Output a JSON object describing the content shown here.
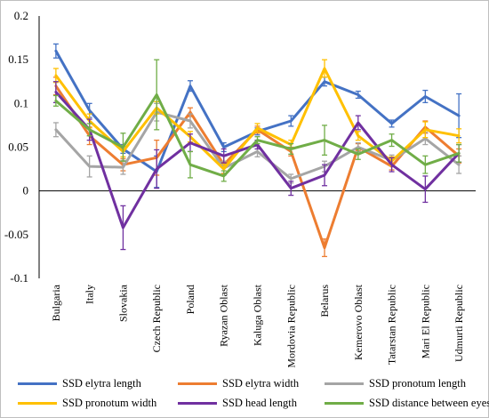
{
  "chart_data": {
    "type": "line",
    "title": "",
    "xlabel": "",
    "ylabel": "",
    "ylim": [
      -0.1,
      0.2
    ],
    "yticks": [
      "0.2",
      "0.15",
      "0.1",
      "0.05",
      "0",
      "-0.05",
      "-0.1"
    ],
    "ytick_values": [
      0.2,
      0.15,
      0.1,
      0.05,
      0,
      -0.05,
      -0.1
    ],
    "grid": false,
    "legend_position": "bottom",
    "categories": [
      "Bulgaria",
      "Italy",
      "Slovakia",
      "Czech Republic",
      "Poland",
      "Ryazan Oblast",
      "Kaluga Oblast",
      "Mordovia Republic",
      "Belarus",
      "Kemerovo Oblast",
      "Tatarstan Republic",
      "Mari El Republic",
      "Udmurti Republic"
    ],
    "series": [
      {
        "name": "SSD elytra length",
        "color": "#4472c4",
        "values": [
          0.16,
          0.092,
          0.048,
          0.022,
          0.12,
          0.05,
          0.068,
          0.08,
          0.125,
          0.11,
          0.077,
          0.108,
          0.086
        ],
        "errors": [
          0.008,
          0.008,
          0.005,
          0.018,
          0.006,
          0.005,
          0.004,
          0.006,
          0.005,
          0.004,
          0.004,
          0.007,
          0.025
        ]
      },
      {
        "name": "SSD elytra width",
        "color": "#ed7d31",
        "values": [
          0.12,
          0.063,
          0.03,
          0.038,
          0.09,
          0.03,
          0.07,
          0.045,
          -0.065,
          0.05,
          0.028,
          0.073,
          0.04
        ],
        "errors": [
          0.01,
          0.01,
          0.007,
          0.02,
          0.005,
          0.01,
          0.004,
          0.005,
          0.01,
          0.004,
          0.004,
          0.007,
          0.008
        ]
      },
      {
        "name": "SSD pronotum length",
        "color": "#a5a5a5",
        "values": [
          0.07,
          0.028,
          0.027,
          0.09,
          0.08,
          0.026,
          0.045,
          0.014,
          0.028,
          0.05,
          0.035,
          0.06,
          0.03
        ],
        "errors": [
          0.008,
          0.012,
          0.008,
          0.01,
          0.008,
          0.008,
          0.006,
          0.005,
          0.006,
          0.005,
          0.006,
          0.007,
          0.01
        ]
      },
      {
        "name": "SSD pronotum width",
        "color": "#ffc000",
        "values": [
          0.132,
          0.08,
          0.045,
          0.095,
          0.062,
          0.025,
          0.072,
          0.053,
          0.14,
          0.063,
          0.034,
          0.07,
          0.063
        ],
        "errors": [
          0.008,
          0.008,
          0.006,
          0.007,
          0.006,
          0.006,
          0.005,
          0.005,
          0.01,
          0.005,
          0.005,
          0.009,
          0.008
        ]
      },
      {
        "name": "SSD head length",
        "color": "#7030a0",
        "values": [
          0.113,
          0.07,
          -0.042,
          0.025,
          0.055,
          0.04,
          0.053,
          0.003,
          0.018,
          0.078,
          0.03,
          0.002,
          0.043
        ],
        "errors": [
          0.012,
          0.012,
          0.025,
          0.022,
          0.01,
          0.008,
          0.005,
          0.008,
          0.012,
          0.008,
          0.008,
          0.015,
          0.01
        ]
      },
      {
        "name": "SSD distance between eyes",
        "color": "#70ad47",
        "values": [
          0.103,
          0.07,
          0.05,
          0.11,
          0.03,
          0.017,
          0.058,
          0.048,
          0.058,
          0.042,
          0.058,
          0.03,
          0.043
        ],
        "errors": [
          0.006,
          0.007,
          0.016,
          0.04,
          0.015,
          0.006,
          0.004,
          0.006,
          0.017,
          0.006,
          0.007,
          0.01,
          0.01
        ]
      }
    ]
  }
}
